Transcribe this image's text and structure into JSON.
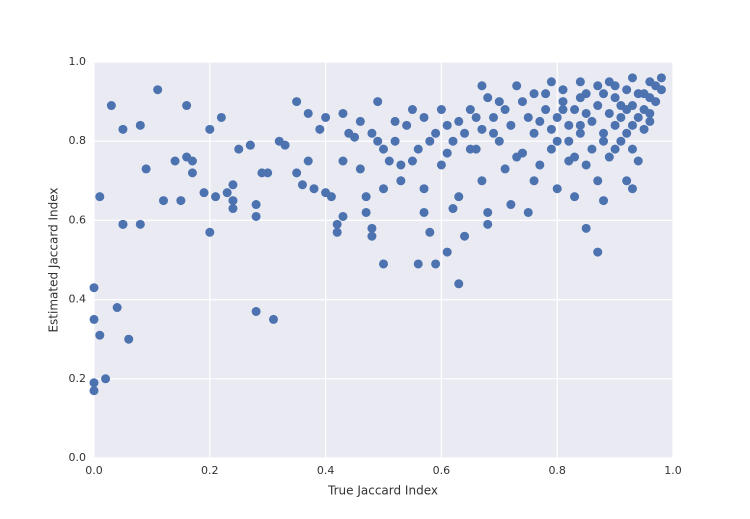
{
  "chart_data": {
    "type": "scatter",
    "x_label": "True Jaccard Index",
    "y_label": "Estimated Jaccard Index",
    "color": "#4c72b0",
    "grid": true,
    "xlim": [
      0,
      1
    ],
    "ylim": [
      0,
      1
    ],
    "xticks": [
      {
        "value": 0,
        "label": "0.0"
      },
      0.2,
      0.4,
      0.6,
      0.8,
      {
        "value": 1,
        "label": "1.0"
      }
    ],
    "yticks": [
      {
        "value": 0,
        "label": "0.0"
      },
      0.2,
      0.4,
      0.6,
      0.8,
      {
        "value": 1,
        "label": "1.0"
      }
    ],
    "x": [
      0.0,
      0.0,
      0.0,
      0.0,
      0.02,
      0.01,
      0.04,
      0.06,
      0.01,
      0.03,
      0.05,
      0.05,
      0.05,
      0.08,
      0.08,
      0.09,
      0.11,
      0.12,
      0.14,
      0.15,
      0.16,
      0.16,
      0.17,
      0.17,
      0.19,
      0.2,
      0.2,
      0.21,
      0.22,
      0.23,
      0.24,
      0.24,
      0.24,
      0.25,
      0.27,
      0.27,
      0.28,
      0.28,
      0.28,
      0.31,
      0.29,
      0.3,
      0.32,
      0.33,
      0.35,
      0.35,
      0.36,
      0.37,
      0.37,
      0.38,
      0.39,
      0.4,
      0.4,
      0.41,
      0.42,
      0.42,
      0.43,
      0.43,
      0.43,
      0.44,
      0.45,
      0.46,
      0.47,
      0.47,
      0.48,
      0.48,
      0.5,
      0.5,
      0.49,
      0.49,
      0.51,
      0.52,
      0.53,
      0.55,
      0.56,
      0.57,
      0.57,
      0.58,
      0.58,
      0.59,
      0.6,
      0.61,
      0.61,
      0.62,
      0.63,
      0.64,
      0.63,
      0.65,
      0.66,
      0.67,
      0.67,
      0.68,
      0.68,
      0.69,
      0.7,
      0.71,
      0.72,
      0.73,
      0.74,
      0.75,
      0.76,
      0.77,
      0.78,
      0.79,
      0.8,
      0.8,
      0.81,
      0.82,
      0.83,
      0.84,
      0.85,
      0.85,
      0.87,
      0.87,
      0.88,
      0.88,
      0.89,
      0.9,
      0.91,
      0.92,
      0.93,
      0.93,
      0.94,
      0.95,
      0.96,
      0.97,
      0.98,
      0.8,
      0.81,
      0.82,
      0.83,
      0.84,
      0.85,
      0.86,
      0.87,
      0.88,
      0.89,
      0.9,
      0.91,
      0.92,
      0.93,
      0.94,
      0.95,
      0.96,
      0.97,
      0.9,
      0.92,
      0.88,
      0.86,
      0.84,
      0.82,
      0.79,
      0.78,
      0.76,
      0.75,
      0.74,
      0.72,
      0.71,
      0.7,
      0.69,
      0.68,
      0.67,
      0.66,
      0.65,
      0.64,
      0.63,
      0.62,
      0.73,
      0.77,
      0.79,
      0.83,
      0.85,
      0.89,
      0.91,
      0.93,
      0.95,
      0.96,
      0.94,
      0.92,
      0.9,
      0.87,
      0.84,
      0.81,
      0.96,
      0.93,
      0.98,
      0.76,
      0.52,
      0.54,
      0.56,
      0.57,
      0.59,
      0.61,
      0.48,
      0.46,
      0.5,
      0.55,
      0.6,
      0.53
    ],
    "y": [
      0.43,
      0.35,
      0.19,
      0.17,
      0.2,
      0.31,
      0.38,
      0.3,
      0.66,
      0.89,
      0.83,
      0.59,
      0.59,
      0.59,
      0.84,
      0.73,
      0.93,
      0.65,
      0.75,
      0.65,
      0.89,
      0.76,
      0.75,
      0.72,
      0.67,
      0.83,
      0.57,
      0.66,
      0.86,
      0.67,
      0.65,
      0.63,
      0.69,
      0.78,
      0.79,
      0.79,
      0.64,
      0.61,
      0.37,
      0.35,
      0.72,
      0.72,
      0.8,
      0.79,
      0.9,
      0.72,
      0.69,
      0.87,
      0.75,
      0.68,
      0.83,
      0.86,
      0.67,
      0.66,
      0.59,
      0.57,
      0.61,
      0.75,
      0.87,
      0.82,
      0.81,
      0.73,
      0.66,
      0.62,
      0.58,
      0.56,
      0.49,
      0.68,
      0.9,
      0.8,
      0.75,
      0.85,
      0.74,
      0.88,
      0.49,
      0.62,
      0.68,
      0.57,
      0.8,
      0.49,
      0.88,
      0.77,
      0.52,
      0.63,
      0.44,
      0.56,
      0.66,
      0.78,
      0.86,
      0.94,
      0.7,
      0.59,
      0.62,
      0.82,
      0.9,
      0.73,
      0.64,
      0.94,
      0.77,
      0.62,
      0.7,
      0.85,
      0.92,
      0.95,
      0.68,
      0.8,
      0.88,
      0.75,
      0.66,
      0.84,
      0.92,
      0.58,
      0.52,
      0.7,
      0.65,
      0.82,
      0.95,
      0.78,
      0.89,
      0.7,
      0.68,
      0.84,
      0.75,
      0.92,
      0.85,
      0.94,
      0.96,
      0.86,
      0.9,
      0.84,
      0.88,
      0.91,
      0.87,
      0.85,
      0.89,
      0.92,
      0.87,
      0.91,
      0.86,
      0.93,
      0.89,
      0.92,
      0.88,
      0.91,
      0.9,
      0.84,
      0.82,
      0.8,
      0.78,
      0.82,
      0.8,
      0.83,
      0.88,
      0.82,
      0.86,
      0.9,
      0.84,
      0.88,
      0.8,
      0.86,
      0.91,
      0.83,
      0.78,
      0.88,
      0.82,
      0.85,
      0.8,
      0.76,
      0.74,
      0.78,
      0.76,
      0.74,
      0.76,
      0.8,
      0.78,
      0.83,
      0.87,
      0.86,
      0.88,
      0.94,
      0.94,
      0.95,
      0.93,
      0.95,
      0.96,
      0.93,
      0.92,
      0.8,
      0.84,
      0.78,
      0.86,
      0.82,
      0.84,
      0.82,
      0.85,
      0.78,
      0.75,
      0.74,
      0.7
    ]
  }
}
